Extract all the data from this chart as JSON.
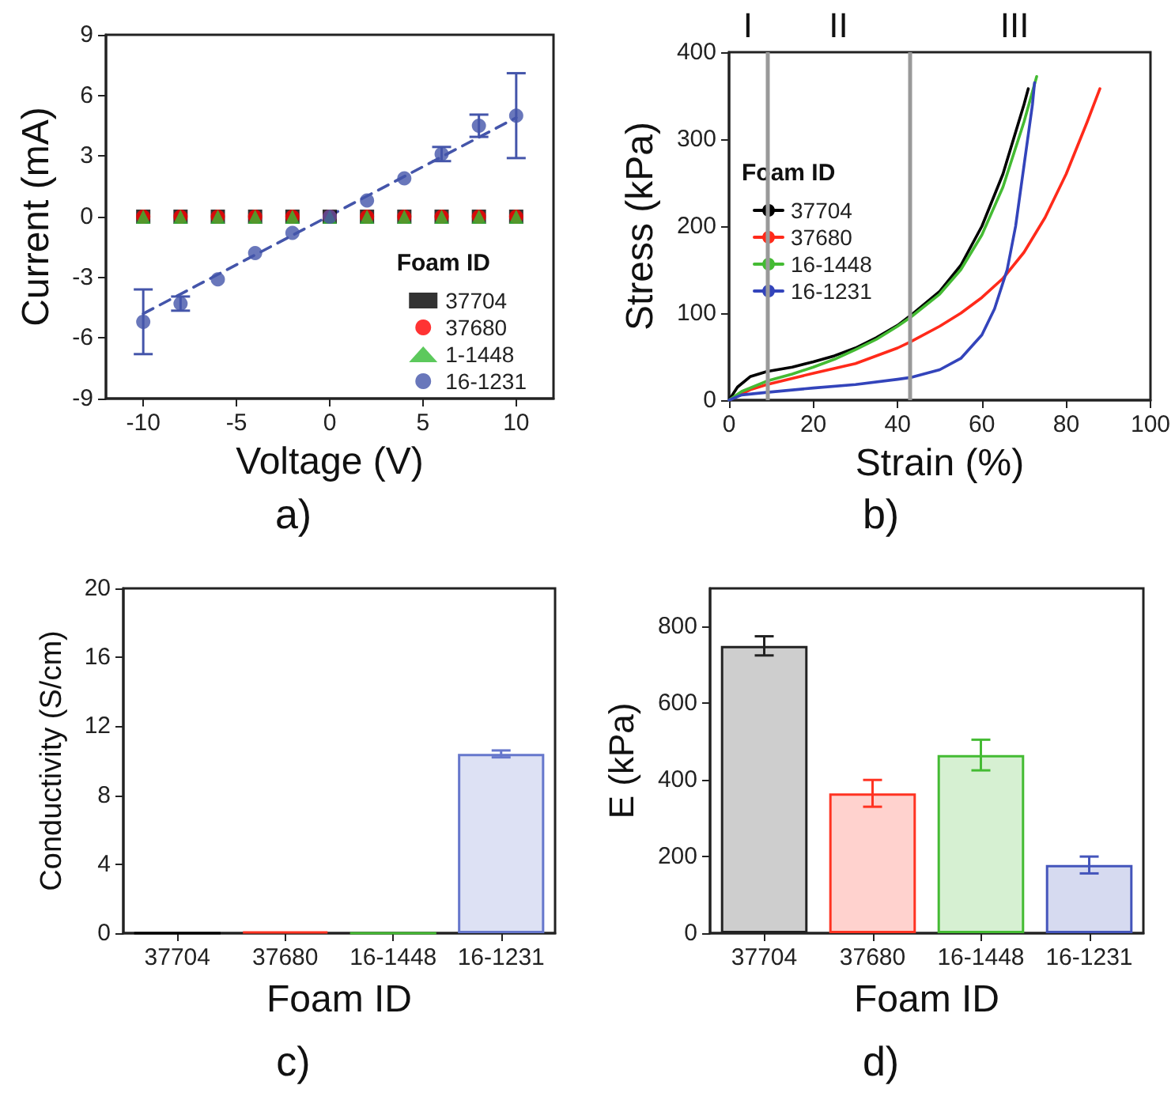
{
  "chart_data": [
    {
      "type": "scatter",
      "xlabel": "Voltage (V)",
      "ylabel": "Current (mA)",
      "annotations": [
        "a)"
      ],
      "x": [
        -10,
        -8,
        -6,
        -4,
        -2,
        0,
        2,
        4,
        6,
        8,
        10
      ],
      "xlim": [
        -12,
        12
      ],
      "xticks": [
        -10,
        -5,
        0,
        5,
        10
      ],
      "ylim": [
        -9,
        9
      ],
      "yticks": [
        -9,
        -6,
        -3,
        0,
        3,
        6,
        9
      ],
      "legend": "bottom right",
      "legend_title": "Foam ID",
      "series": [
        {
          "name": "37704",
          "color": "#000000",
          "marker": "square",
          "values": [
            0,
            0,
            0,
            0,
            0,
            0,
            0,
            0,
            0,
            0,
            0
          ]
        },
        {
          "name": "37680",
          "color": "#ff0000",
          "marker": "circle",
          "values": [
            0,
            0,
            0,
            0,
            0,
            0,
            0,
            0,
            0,
            0,
            0
          ]
        },
        {
          "name": "1-1448",
          "color": "#33bb33",
          "marker": "triangle",
          "values": [
            0,
            0,
            0,
            0,
            0,
            0,
            0,
            0,
            0,
            0,
            0
          ]
        },
        {
          "name": "16-1231",
          "color": "#4455aa",
          "marker": "circle",
          "values": [
            -5.2,
            -4.3,
            -3.1,
            -1.8,
            -0.8,
            0,
            0.8,
            1.9,
            3.1,
            4.5,
            5.0
          ],
          "errors": [
            1.6,
            0.35,
            null,
            null,
            null,
            null,
            null,
            null,
            0.35,
            0.55,
            2.1
          ]
        },
        {
          "type": "line",
          "color": "#4455aa",
          "line_style": "dashed",
          "marker": "none",
          "x": [
            -10,
            10
          ],
          "values": [
            -4.8,
            4.9
          ]
        }
      ]
    },
    {
      "type": "line",
      "xlabel": "Strain (%)",
      "ylabel": "Stress (kPa)",
      "xlim": [
        0,
        100
      ],
      "xticks": [
        0,
        20,
        40,
        60,
        80,
        100
      ],
      "ylim": [
        0,
        400
      ],
      "yticks": [
        0,
        100,
        200,
        300,
        400
      ],
      "legend": "left",
      "legend_title": "Foam ID",
      "ref_lines": [
        {
          "axis": "x",
          "value": 9,
          "color": "#999999"
        },
        {
          "axis": "x",
          "value": 43,
          "color": "#999999"
        }
      ],
      "annotations": [
        "I",
        "II",
        "III",
        "b)"
      ],
      "series": [
        {
          "name": "37704",
          "color": "#000000",
          "x": [
            0,
            2,
            5,
            9,
            15,
            20,
            25,
            30,
            35,
            40,
            43,
            50,
            55,
            60,
            65,
            70,
            71
          ],
          "values": [
            0,
            15,
            27,
            33,
            38,
            44,
            51,
            60,
            72,
            86,
            97,
            125,
            155,
            200,
            260,
            340,
            358
          ]
        },
        {
          "name": "37680",
          "color": "#ff2a1a",
          "x": [
            0,
            5,
            9,
            15,
            20,
            30,
            40,
            43,
            50,
            55,
            60,
            65,
            70,
            75,
            80,
            85,
            88
          ],
          "values": [
            0,
            12,
            18,
            25,
            31,
            42,
            60,
            67,
            85,
            100,
            118,
            140,
            170,
            210,
            260,
            320,
            358
          ]
        },
        {
          "name": "16-1448",
          "color": "#44bb33",
          "x": [
            0,
            3,
            9,
            15,
            20,
            25,
            30,
            35,
            40,
            43,
            50,
            55,
            60,
            65,
            70,
            73
          ],
          "values": [
            0,
            10,
            22,
            30,
            38,
            47,
            58,
            70,
            85,
            95,
            122,
            150,
            190,
            245,
            320,
            372
          ]
        },
        {
          "name": "16-1231",
          "color": "#3344bb",
          "x": [
            0,
            3,
            9,
            20,
            30,
            40,
            43,
            50,
            55,
            60,
            63,
            66,
            68,
            70,
            72,
            72.5
          ],
          "values": [
            0,
            6,
            9,
            14,
            18,
            24,
            26,
            35,
            48,
            75,
            105,
            150,
            200,
            270,
            340,
            365
          ]
        }
      ]
    },
    {
      "type": "bar",
      "xlabel": "Foam ID",
      "ylabel": "Conductivity (S/cm)",
      "annotations": [
        "c)"
      ],
      "categories": [
        "37704",
        "37680",
        "16-1448",
        "16-1231"
      ],
      "values": [
        0,
        0.1,
        0,
        10.4
      ],
      "errors": [
        null,
        null,
        null,
        0.2
      ],
      "colors": [
        "#000000",
        "#ff3322",
        "#44bb33",
        "#6677cc"
      ],
      "ylim": [
        0,
        20
      ],
      "yticks": [
        0,
        4,
        8,
        12,
        16,
        20
      ]
    },
    {
      "type": "bar",
      "xlabel": "Foam ID",
      "ylabel": "E (kPa)",
      "annotations": [
        "d)"
      ],
      "categories": [
        "37704",
        "37680",
        "16-1448",
        "16-1231"
      ],
      "values": [
        750,
        365,
        465,
        178
      ],
      "errors": [
        25,
        35,
        40,
        22
      ],
      "colors": [
        "#222222",
        "#ff3322",
        "#44bb33",
        "#4455bb"
      ],
      "ylim": [
        0,
        900
      ],
      "yticks": [
        0,
        200,
        400,
        600,
        800
      ]
    }
  ]
}
